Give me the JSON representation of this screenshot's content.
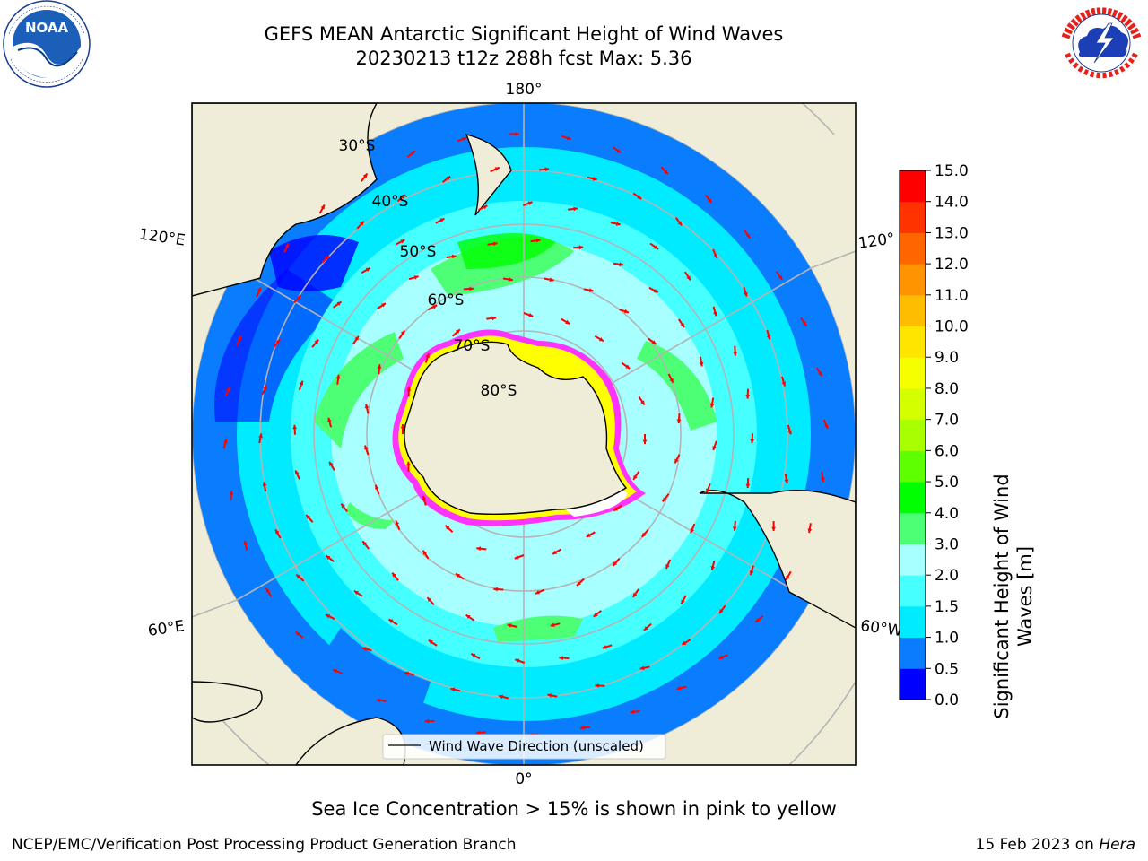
{
  "header": {
    "title_line1": "GEFS MEAN Antarctic Significant Height of Wind Waves",
    "title_line2": "20230213 t12z 288h fcst   Max: 5.36"
  },
  "logos": {
    "left": {
      "icon": "noaa-logo",
      "text": "NOAA",
      "ring_text": "NATIONAL OCEANIC AND ATMOSPHERIC ADMINISTRATION · U.S. DEPARTMENT OF COMMERCE"
    },
    "right": {
      "icon": "national-weather-service-logo",
      "ring_text": "NATIONAL WEATHER SERVICE"
    }
  },
  "map": {
    "projection": "south-polar-stereographic",
    "longitude_labels": {
      "top": "180°",
      "bottom": "0°",
      "upper_left": "120°E",
      "upper_right": "120°",
      "lower_left": "60°E",
      "lower_right": "60°W"
    },
    "latitude_labels": [
      "30°S",
      "40°S",
      "50°S",
      "60°S",
      "70°S",
      "80°S"
    ],
    "legend_label": "Wind Wave Direction (unscaled)",
    "arrow_color": "#ff0000",
    "land_color": "#efedd8",
    "sea_ice_colors": [
      "#ff33ff",
      "#ffff00",
      "#ffffff"
    ]
  },
  "colorbar": {
    "label_line1": "Significant Height of Wind",
    "label_line2": "Waves [m]",
    "ticks": [
      "0.0",
      "0.5",
      "1.0",
      "1.5",
      "2.0",
      "3.0",
      "4.0",
      "5.0",
      "6.0",
      "7.0",
      "8.0",
      "9.0",
      "10.0",
      "11.0",
      "12.0",
      "13.0",
      "14.0",
      "15.0"
    ],
    "colors": [
      "#0000ff",
      "#0a7dff",
      "#00ebff",
      "#46ffff",
      "#a8ffff",
      "#4dff74",
      "#00ff00",
      "#5eff00",
      "#a8ff00",
      "#d4ff00",
      "#f5ff00",
      "#ffe500",
      "#ffbd00",
      "#ff9400",
      "#ff6600",
      "#ff3300",
      "#ff0000"
    ]
  },
  "subtitle": "Sea Ice Concentration > 15% is shown in pink to yellow",
  "footer": {
    "left": "NCEP/EMC/Verification Post Processing Product Generation Branch",
    "right_prefix": "15 Feb 2023 on ",
    "right_host": "Hera"
  }
}
